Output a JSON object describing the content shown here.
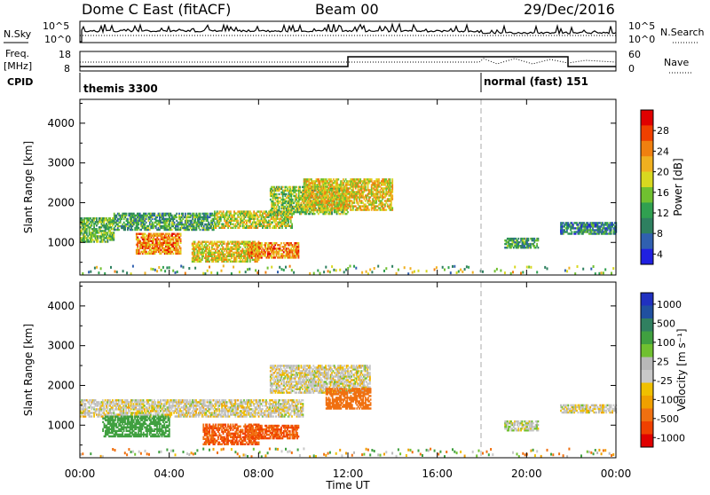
{
  "header": {
    "title": "Dome C East (fitACF)",
    "beam": "Beam 00",
    "date": "29/Dec/2016"
  },
  "nsky_panel": {
    "left_label": "N.Sky",
    "left_ticks": [
      "10^5",
      "10^0"
    ],
    "right_label": "N.Search",
    "right_ticks": [
      "10^5",
      "10^0"
    ]
  },
  "freq_panel": {
    "left_label_line1": "Freq.",
    "left_label_line2": "[MHz]",
    "left_ticks": [
      "18",
      "8"
    ],
    "right_label": "Nave",
    "right_ticks": [
      "60",
      "0"
    ]
  },
  "cpid": {
    "label": "CPID",
    "segments": [
      {
        "text": "themis 3300",
        "start_hour": 0
      },
      {
        "text": "normal (fast) 151",
        "start_hour": 18
      }
    ]
  },
  "power_panel": {
    "ylabel": "Slant Range [km]",
    "colorbar_label": "Power [dB]",
    "colorbar_ticks": [
      "28",
      "24",
      "20",
      "16",
      "12",
      "8",
      "4"
    ],
    "colorbar_colors": [
      "#e00000",
      "#f04000",
      "#f08010",
      "#f0b020",
      "#d8d820",
      "#70c030",
      "#30a050",
      "#2e8060",
      "#3060b0",
      "#2020e0"
    ]
  },
  "velocity_panel": {
    "ylabel": "Slant Range [km]",
    "colorbar_label": "Velocity [m s⁻¹]",
    "colorbar_ticks": [
      "1000",
      "500",
      "100",
      "25",
      "-25",
      "-100",
      "-500",
      "-1000"
    ],
    "colorbar_colors": [
      "#2030c0",
      "#2050a0",
      "#308060",
      "#40a040",
      "#70c030",
      "#b8b8b8",
      "#c8c8c8",
      "#f0c000",
      "#f0a000",
      "#f07010",
      "#f04000",
      "#e00000"
    ]
  },
  "x_axis": {
    "label": "Time UT",
    "ticks": [
      "00:00",
      "04:00",
      "08:00",
      "12:00",
      "16:00",
      "20:00",
      "00:00"
    ]
  },
  "chart_data": [
    {
      "type": "heatmap",
      "title": "Power",
      "xlabel": "Time UT",
      "ylabel": "Slant Range [km]",
      "xlim": [
        0,
        24
      ],
      "ylim": [
        180,
        4600
      ],
      "y_ticks": [
        1000,
        2000,
        3000,
        4000
      ],
      "x_ticks": [
        "00:00",
        "04:00",
        "08:00",
        "12:00",
        "16:00",
        "20:00",
        "00:00"
      ],
      "colorbar": {
        "label": "Power [dB]",
        "range": [
          0,
          30
        ],
        "ticks": [
          4,
          8,
          12,
          16,
          20,
          24,
          28
        ]
      },
      "grid": false,
      "regions": [
        {
          "t0": 0.0,
          "t1": 1.5,
          "r0": 1000,
          "r1": 1600,
          "value": 12
        },
        {
          "t0": 1.5,
          "t1": 6.0,
          "r0": 1300,
          "r1": 1750,
          "value": 10
        },
        {
          "t0": 2.5,
          "t1": 4.5,
          "r0": 700,
          "r1": 1200,
          "value": 22
        },
        {
          "t0": 5.0,
          "t1": 8.0,
          "r0": 500,
          "r1": 1000,
          "value": 18
        },
        {
          "t0": 6.0,
          "t1": 9.5,
          "r0": 1350,
          "r1": 1800,
          "value": 16
        },
        {
          "t0": 7.5,
          "t1": 9.8,
          "r0": 600,
          "r1": 1000,
          "value": 22
        },
        {
          "t0": 8.5,
          "t1": 12.0,
          "r0": 1700,
          "r1": 2400,
          "value": 14
        },
        {
          "t0": 10.0,
          "t1": 14.0,
          "r0": 1800,
          "r1": 2600,
          "value": 18
        },
        {
          "t0": 19.0,
          "t1": 20.5,
          "r0": 850,
          "r1": 1100,
          "value": 10
        },
        {
          "t0": 21.5,
          "t1": 24.0,
          "r0": 1200,
          "r1": 1500,
          "value": 8
        }
      ]
    },
    {
      "type": "heatmap",
      "title": "Velocity",
      "xlabel": "Time UT",
      "ylabel": "Slant Range [km]",
      "xlim": [
        0,
        24
      ],
      "ylim": [
        180,
        4600
      ],
      "y_ticks": [
        1000,
        2000,
        3000,
        4000
      ],
      "x_ticks": [
        "00:00",
        "04:00",
        "08:00",
        "12:00",
        "16:00",
        "20:00",
        "00:00"
      ],
      "colorbar": {
        "label": "Velocity [m s⁻¹]",
        "ticks": [
          1000,
          500,
          100,
          25,
          -25,
          -100,
          -500,
          -1000
        ]
      },
      "grid": false,
      "regions": [
        {
          "t0": 0.0,
          "t1": 10.0,
          "r0": 1200,
          "r1": 1650,
          "value": 0
        },
        {
          "t0": 1.0,
          "t1": 4.0,
          "r0": 700,
          "r1": 1200,
          "value": 200
        },
        {
          "t0": 5.5,
          "t1": 8.0,
          "r0": 500,
          "r1": 1000,
          "value": -300
        },
        {
          "t0": 7.5,
          "t1": 9.8,
          "r0": 650,
          "r1": 1000,
          "value": -300
        },
        {
          "t0": 8.5,
          "t1": 13.0,
          "r0": 1800,
          "r1": 2500,
          "value": 0
        },
        {
          "t0": 11.0,
          "t1": 13.0,
          "r0": 1400,
          "r1": 1900,
          "value": -200
        },
        {
          "t0": 19.0,
          "t1": 20.5,
          "r0": 850,
          "r1": 1100,
          "value": 20
        },
        {
          "t0": 21.5,
          "t1": 24.0,
          "r0": 1300,
          "r1": 1500,
          "value": 0
        }
      ]
    }
  ]
}
